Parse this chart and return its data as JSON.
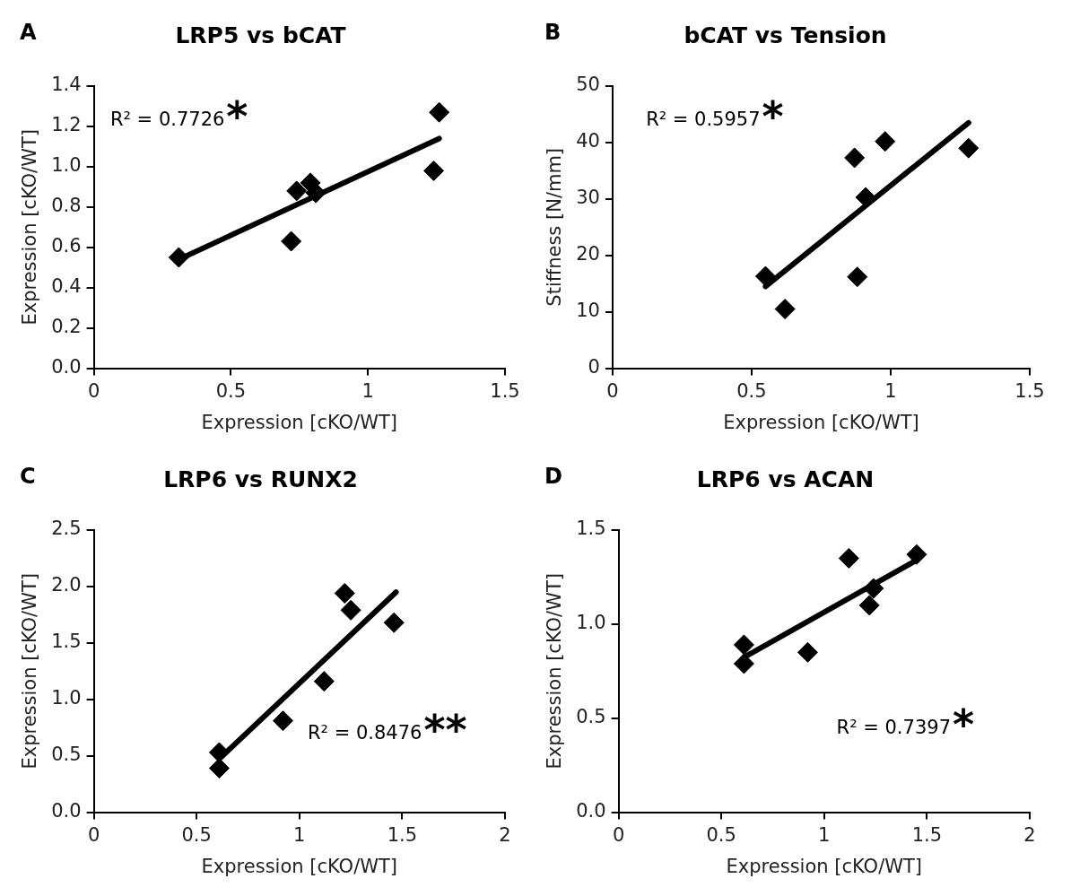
{
  "chart_data": [
    {
      "type": "scatter",
      "title": "LRP5 vs bCAT",
      "xlabel": "Expression [cKO/WT]",
      "ylabel": "Expression [cKO/WT]",
      "xlim": [
        0,
        1.5
      ],
      "xticks": [
        0,
        0.5,
        1,
        1.5
      ],
      "ylim": [
        0,
        1.4
      ],
      "yticks": [
        {
          "value": 0,
          "label": "0.0"
        },
        {
          "value": 0.2,
          "label": "0.2"
        },
        {
          "value": 0.4,
          "label": "0.4"
        },
        {
          "value": 0.6,
          "label": "0.6"
        },
        {
          "value": 0.8,
          "label": "0.8"
        },
        {
          "value": 1,
          "label": "1.0"
        },
        {
          "value": 1.2,
          "label": "1.2"
        },
        {
          "value": 1.4,
          "label": "1.4"
        }
      ],
      "grid": false,
      "legend": false,
      "annotations": [
        "A",
        "R² = 0.7726",
        "*"
      ],
      "series": [
        {
          "type": "scatter",
          "color": "#000000",
          "marker": "diamond",
          "x": [
            0.31,
            0.72,
            0.74,
            0.79,
            0.81,
            1.24,
            1.26
          ],
          "values": [
            0.55,
            0.63,
            0.88,
            0.92,
            0.87,
            0.98,
            1.27
          ]
        },
        {
          "type": "line",
          "color": "#000000",
          "marker": "none",
          "x": [
            0.31,
            1.26
          ],
          "values": [
            0.54,
            1.14
          ]
        }
      ]
    },
    {
      "type": "scatter",
      "title": "bCAT vs Tension",
      "xlabel": "Expression [cKO/WT]",
      "ylabel": "Stiffness [N/mm]",
      "xlim": [
        0,
        1.5
      ],
      "xticks": [
        0,
        0.5,
        1,
        1.5
      ],
      "ylim": [
        0,
        50
      ],
      "yticks": [
        0,
        10,
        20,
        30,
        40,
        50
      ],
      "grid": false,
      "legend": false,
      "annotations": [
        "B",
        "R² = 0.5957",
        "*"
      ],
      "series": [
        {
          "type": "scatter",
          "color": "#000000",
          "marker": "diamond",
          "x": [
            0.55,
            0.62,
            0.87,
            0.88,
            0.91,
            0.98,
            1.28
          ],
          "values": [
            16.3,
            10.5,
            37.3,
            16.2,
            30.3,
            40.2,
            39
          ]
        },
        {
          "type": "line",
          "color": "#000000",
          "marker": "none",
          "x": [
            0.55,
            1.28
          ],
          "values": [
            14.5,
            43.5
          ]
        }
      ]
    },
    {
      "type": "scatter",
      "title": "LRP6 vs RUNX2",
      "xlabel": "Expression [cKO/WT]",
      "ylabel": "Expression [cKO/WT]",
      "xlim": [
        0,
        2
      ],
      "xticks": [
        0,
        0.5,
        1,
        1.5,
        2
      ],
      "ylim": [
        0,
        2.5
      ],
      "yticks": [
        {
          "value": 0,
          "label": "0.0"
        },
        {
          "value": 0.5,
          "label": "0.5"
        },
        {
          "value": 1,
          "label": "1.0"
        },
        {
          "value": 1.5,
          "label": "1.5"
        },
        {
          "value": 2,
          "label": "2.0"
        },
        {
          "value": 2.5,
          "label": "2.5"
        }
      ],
      "grid": false,
      "legend": false,
      "annotations": [
        "C",
        "R² = 0.8476",
        "**"
      ],
      "series": [
        {
          "type": "scatter",
          "color": "#000000",
          "marker": "diamond",
          "x": [
            0.61,
            0.61,
            0.92,
            1.12,
            1.22,
            1.25,
            1.46
          ],
          "values": [
            0.53,
            0.39,
            0.81,
            1.16,
            1.94,
            1.79,
            1.68
          ]
        },
        {
          "type": "line",
          "color": "#000000",
          "marker": "none",
          "x": [
            0.62,
            1.47
          ],
          "values": [
            0.49,
            1.95
          ]
        }
      ]
    },
    {
      "type": "scatter",
      "title": "LRP6 vs ACAN",
      "xlabel": "Expression [cKO/WT]",
      "ylabel": "Expression [cKO/WT]",
      "xlim": [
        0,
        2
      ],
      "xticks": [
        0,
        0.5,
        1,
        1.5,
        2
      ],
      "ylim": [
        0,
        1.5
      ],
      "yticks": [
        {
          "value": 0,
          "label": "0.0"
        },
        {
          "value": 0.5,
          "label": "0.5"
        },
        {
          "value": 1,
          "label": "1.0"
        },
        {
          "value": 1.5,
          "label": "1.5"
        }
      ],
      "grid": false,
      "legend": false,
      "annotations": [
        "D",
        "R² = 0.7397",
        "*"
      ],
      "series": [
        {
          "type": "scatter",
          "color": "#000000",
          "marker": "diamond",
          "x": [
            0.61,
            0.61,
            0.92,
            1.12,
            1.22,
            1.24,
            1.45
          ],
          "values": [
            0.89,
            0.79,
            0.85,
            1.35,
            1.1,
            1.19,
            1.37
          ]
        },
        {
          "type": "line",
          "color": "#000000",
          "marker": "none",
          "x": [
            0.62,
            1.45
          ],
          "values": [
            0.83,
            1.34
          ]
        }
      ]
    }
  ]
}
